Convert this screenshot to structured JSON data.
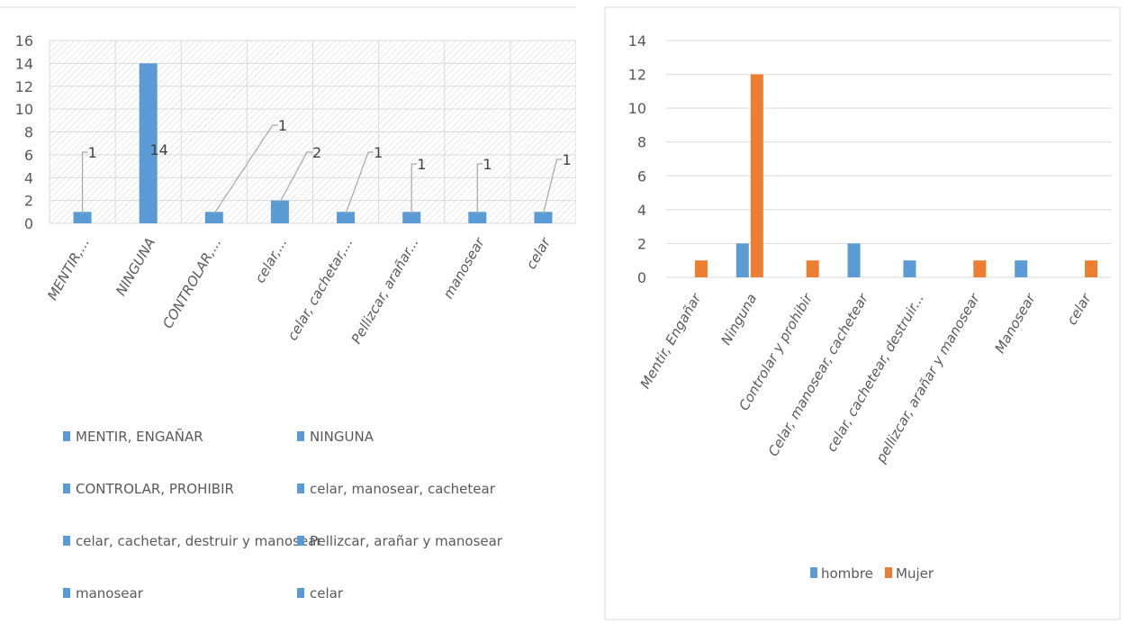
{
  "chart_data": [
    {
      "type": "bar",
      "categories": [
        "MENTIR,...",
        "NINGUNA",
        "CONTROLAR,...",
        "celar,...",
        "celar, cachetar,...",
        "Pellizcar, arañar...",
        "manosear",
        "celar"
      ],
      "series": [
        {
          "values": [
            1,
            14,
            1,
            2,
            1,
            1,
            1,
            1
          ],
          "color": "#5B9BD5"
        }
      ],
      "data_labels": [
        "1",
        "14",
        "1",
        "2",
        "1",
        "1",
        "1",
        "1"
      ],
      "legend": [
        "MENTIR, ENGAÑAR",
        "NINGUNA",
        "CONTROLAR, PROHIBIR",
        "celar, manosear, cachetear",
        "celar, cachetar, destruir y manosear",
        "Pellizcar, arañar y manosear",
        "manosear",
        "celar"
      ],
      "legend_placement": "bottom",
      "yticks": [
        "0",
        "2",
        "4",
        "6",
        "8",
        "10",
        "12",
        "14",
        "16"
      ],
      "ylim": [
        0,
        16
      ],
      "grid": true,
      "plot_background": "hatched"
    },
    {
      "type": "bar",
      "categories": [
        "Mentir, Engañar",
        "Ninguna",
        "Controlar y prohibir",
        "Celar, manosear, cachetear",
        "celar, cachetear, destruir...",
        "pellizcar, arañar y manosear",
        "Manosear",
        "celar"
      ],
      "series": [
        {
          "name": "hombre",
          "values": [
            0,
            2,
            0,
            2,
            1,
            0,
            1,
            0
          ],
          "color": "#5B9BD5"
        },
        {
          "name": "Mujer",
          "values": [
            1,
            12,
            1,
            0,
            0,
            1,
            0,
            1
          ],
          "color": "#ED7D31"
        }
      ],
      "legend_placement": "bottom",
      "yticks": [
        "0",
        "2",
        "4",
        "6",
        "8",
        "10",
        "12",
        "14"
      ],
      "ylim": [
        0,
        14
      ],
      "grid": true
    }
  ]
}
